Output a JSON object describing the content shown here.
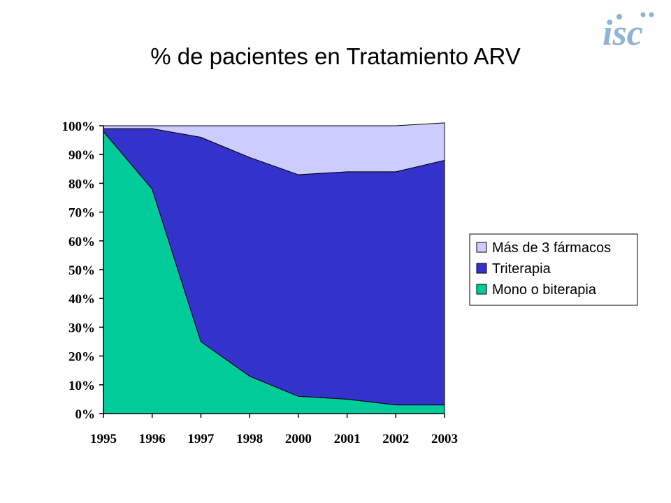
{
  "slide": {
    "title": "% de pacientes en Tratamiento ARV",
    "logo_text": "isc",
    "logo_color": "#8fb3d3"
  },
  "chart_data": {
    "type": "area",
    "stacked": true,
    "title": "",
    "xlabel": "",
    "ylabel": "",
    "categories": [
      "1995",
      "1996",
      "1997",
      "1998",
      "2000",
      "2001",
      "2002",
      "2003"
    ],
    "ylim": [
      0,
      100
    ],
    "y_ticks": [
      "0%",
      "10%",
      "20%",
      "30%",
      "40%",
      "50%",
      "60%",
      "70%",
      "80%",
      "90%",
      "100%"
    ],
    "grid": false,
    "legend_position": "right",
    "series": [
      {
        "name": "Mono o biterapia",
        "color": "#00cc99",
        "values": [
          98,
          78,
          25,
          13,
          6,
          5,
          3,
          3
        ]
      },
      {
        "name": "Triterapia",
        "color": "#3333cc",
        "values": [
          1,
          21,
          71,
          76,
          77,
          79,
          81,
          85
        ]
      },
      {
        "name": "Más de 3 fármacos",
        "color": "#ccccff",
        "values": [
          1,
          1,
          4,
          11,
          17,
          16,
          16,
          13
        ]
      }
    ],
    "legend_order": [
      "Más de 3 fármacos",
      "Triterapia",
      "Mono o biterapia"
    ]
  }
}
